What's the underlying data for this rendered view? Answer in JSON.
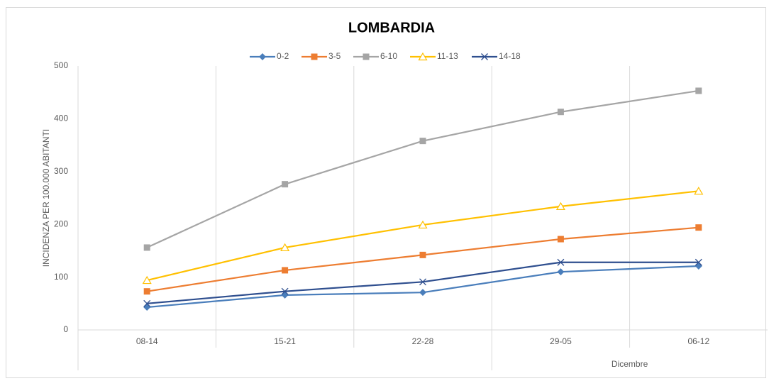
{
  "chart_data": {
    "type": "line",
    "title": "LOMBARDIA",
    "y_label": "INCIDENZA PER 100.000 ABITANTI",
    "categories": [
      "08-14",
      "15-21",
      "22-28",
      "29-05",
      "06-12"
    ],
    "category_groups": [
      {
        "label": "Dicembre",
        "categories": [
          3,
          4
        ]
      }
    ],
    "series": [
      {
        "name": "0-2",
        "color": "#4a7ebb",
        "marker": "diamond",
        "values": [
          43,
          66,
          71,
          110,
          121
        ]
      },
      {
        "name": "3-5",
        "color": "#ed7d31",
        "marker": "square",
        "values": [
          73,
          113,
          142,
          172,
          194
        ]
      },
      {
        "name": "6-10",
        "color": "#a5a5a5",
        "marker": "square",
        "values": [
          156,
          276,
          358,
          413,
          453
        ]
      },
      {
        "name": "11-13",
        "color": "#ffc000",
        "marker": "triangle",
        "values": [
          94,
          156,
          199,
          234,
          263
        ]
      },
      {
        "name": "14-18",
        "color": "#2f4f8f",
        "marker": "cross",
        "values": [
          50,
          73,
          91,
          128,
          128
        ]
      }
    ],
    "ylim": [
      0,
      500
    ],
    "yticks": [
      0,
      100,
      200,
      300,
      400,
      500
    ],
    "legend": "top"
  }
}
